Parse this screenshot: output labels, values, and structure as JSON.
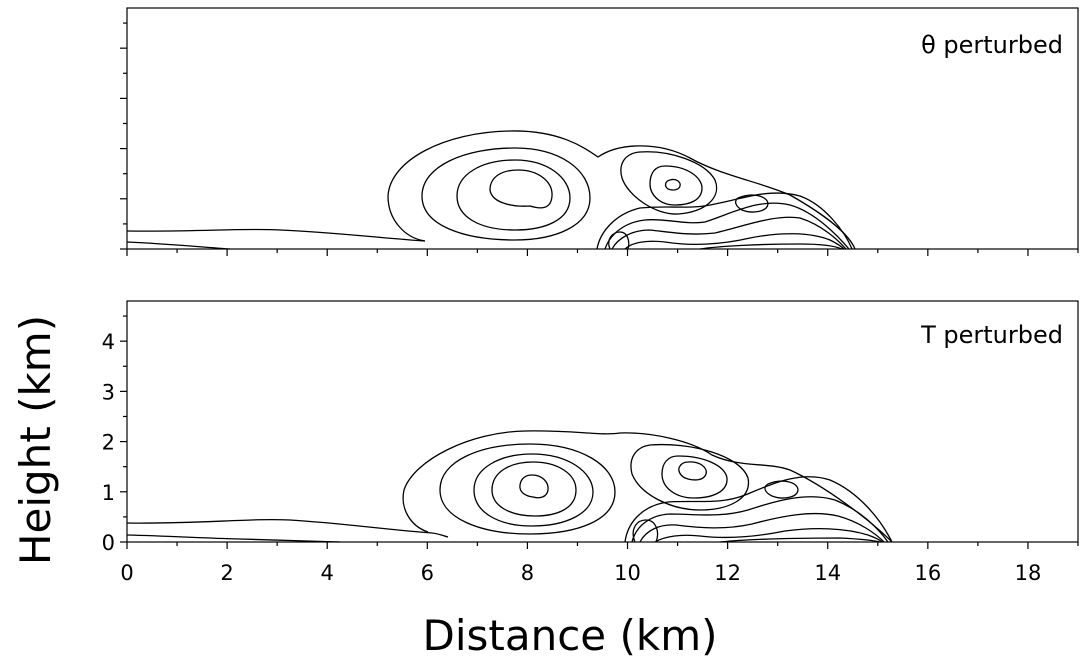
{
  "chart_data": [
    {
      "type": "contour",
      "panel_label": "θ perturbed",
      "xlim": [
        0,
        19
      ],
      "ylim": [
        0,
        4.8
      ],
      "contour_levels_shown": "unlabeled isolines",
      "features": [
        {
          "kind": "surface cold layer",
          "x_range": [
            0,
            6
          ],
          "height_km": 0.35
        },
        {
          "kind": "main vortex",
          "center_x": 7.9,
          "center_y": 1.2,
          "extent_x": [
            5.2,
            11.6
          ]
        },
        {
          "kind": "secondary vortex",
          "center_x": 10.9,
          "center_y": 1.3
        },
        {
          "kind": "gust front head",
          "front_x": 14.6,
          "extent_x": [
            9.4,
            14.6
          ]
        }
      ]
    },
    {
      "type": "contour",
      "panel_label": "T perturbed",
      "xlabel": "Distance (km)",
      "ylabel": "Height (km)",
      "xlim": [
        0,
        19
      ],
      "ylim": [
        0,
        4.8
      ],
      "xticks": [
        "0",
        "2",
        "4",
        "6",
        "8",
        "10",
        "12",
        "14",
        "16",
        "18"
      ],
      "yticks": [
        "0",
        "1",
        "2",
        "3",
        "4"
      ],
      "features": [
        {
          "kind": "surface cold layer",
          "x_range": [
            0,
            6
          ],
          "height_km": 0.4
        },
        {
          "kind": "main vortex",
          "center_x": 8.2,
          "center_y": 1.1,
          "extent_x": [
            5.5,
            12.0
          ]
        },
        {
          "kind": "secondary vortex",
          "center_x": 11.2,
          "center_y": 1.4
        },
        {
          "kind": "gust front head",
          "front_x": 15.2,
          "extent_x": [
            10.0,
            15.2
          ]
        }
      ]
    }
  ]
}
